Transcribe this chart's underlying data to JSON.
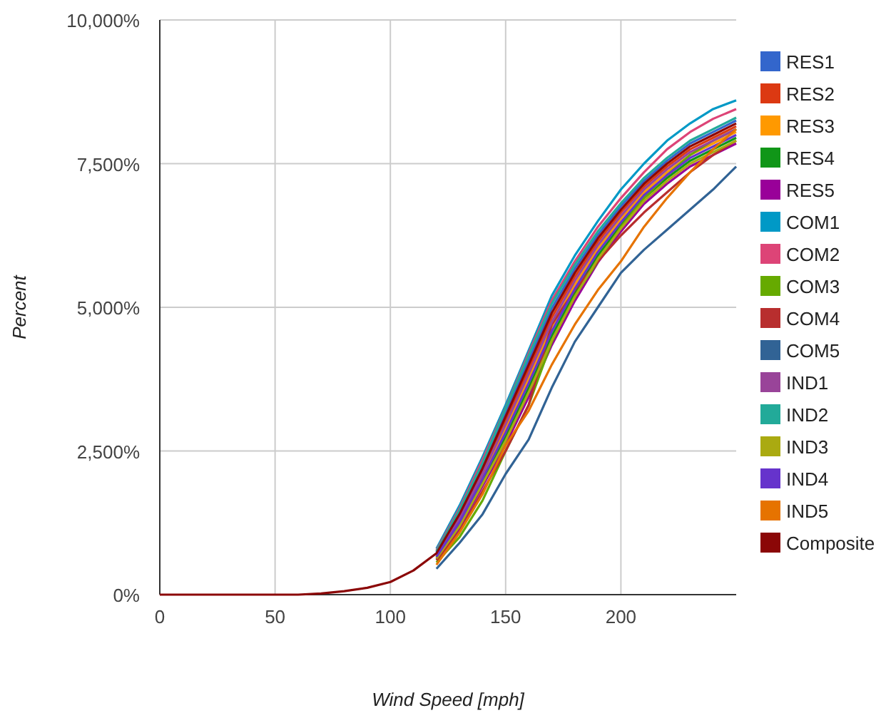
{
  "chart_data": {
    "type": "line",
    "xlabel": "Wind Speed [mph]",
    "ylabel": "Percent",
    "x": [
      0,
      60,
      70,
      80,
      90,
      100,
      110,
      120,
      130,
      140,
      150,
      160,
      170,
      180,
      190,
      200,
      210,
      220,
      230,
      240,
      250
    ],
    "xlim": [
      0,
      250
    ],
    "xticks": [
      0,
      50,
      100,
      150,
      200
    ],
    "ylim": [
      0,
      10000
    ],
    "yticks": [
      {
        "value": 0,
        "label": "0%"
      },
      {
        "value": 2500,
        "label": "2,500%"
      },
      {
        "value": 5000,
        "label": "5,000%"
      },
      {
        "value": 7500,
        "label": "7,500%"
      },
      {
        "value": 10000,
        "label": "10,000%"
      }
    ],
    "grid": true,
    "legend": "right",
    "marker": "none",
    "line_style": "solid",
    "series": [
      {
        "name": "RES1",
        "color": "#3366cc",
        "values": [
          null,
          null,
          null,
          null,
          null,
          null,
          null,
          740,
          1440,
          2250,
          3170,
          4080,
          4980,
          5670,
          6260,
          6760,
          7200,
          7550,
          7850,
          8050,
          8250
        ]
      },
      {
        "name": "RES2",
        "color": "#dc3912",
        "values": [
          null,
          null,
          null,
          null,
          null,
          null,
          null,
          700,
          1360,
          2150,
          3030,
          3920,
          4820,
          5530,
          6140,
          6650,
          7100,
          7450,
          7750,
          7950,
          8150
        ]
      },
      {
        "name": "RES3",
        "color": "#ff9900",
        "values": [
          null,
          null,
          null,
          null,
          null,
          null,
          null,
          680,
          1300,
          2070,
          2890,
          3760,
          4660,
          5390,
          6020,
          6540,
          7000,
          7350,
          7650,
          7850,
          8050
        ]
      },
      {
        "name": "RES4",
        "color": "#109618",
        "values": [
          null,
          null,
          null,
          null,
          null,
          null,
          null,
          650,
          1230,
          1980,
          2750,
          3600,
          4500,
          5250,
          5900,
          6430,
          6900,
          7250,
          7550,
          7750,
          7950
        ]
      },
      {
        "name": "RES5",
        "color": "#990099",
        "values": [
          null,
          null,
          null,
          null,
          null,
          null,
          null,
          620,
          1160,
          1890,
          2610,
          3440,
          4340,
          5110,
          5780,
          6320,
          6800,
          7150,
          7450,
          7650,
          7850
        ]
      },
      {
        "name": "COM1",
        "color": "#0099c6",
        "values": [
          null,
          null,
          null,
          null,
          null,
          null,
          null,
          800,
          1550,
          2400,
          3300,
          4250,
          5200,
          5900,
          6500,
          7050,
          7500,
          7900,
          8200,
          8450,
          8600
        ]
      },
      {
        "name": "COM2",
        "color": "#dd4477",
        "values": [
          null,
          null,
          null,
          null,
          null,
          null,
          null,
          770,
          1500,
          2350,
          3250,
          4200,
          5120,
          5800,
          6400,
          6900,
          7350,
          7750,
          8050,
          8280,
          8450
        ]
      },
      {
        "name": "COM3",
        "color": "#66aa00",
        "values": [
          null,
          null,
          null,
          null,
          null,
          null,
          null,
          560,
          1000,
          1640,
          2500,
          3300,
          4400,
          5200,
          5800,
          6400,
          6900,
          7300,
          7650,
          7900,
          8100
        ]
      },
      {
        "name": "COM4",
        "color": "#b82e2e",
        "values": [
          null,
          null,
          null,
          null,
          null,
          null,
          null,
          600,
          1100,
          1800,
          2500,
          3300,
          4700,
          5300,
          5800,
          6250,
          6650,
          7000,
          7350,
          7650,
          7900
        ]
      },
      {
        "name": "COM5",
        "color": "#316395",
        "values": [
          null,
          null,
          null,
          null,
          null,
          null,
          null,
          450,
          900,
          1400,
          2100,
          2700,
          3600,
          4400,
          5000,
          5600,
          6000,
          6350,
          6700,
          7050,
          7450
        ]
      },
      {
        "name": "IND1",
        "color": "#994499",
        "values": [
          null,
          null,
          null,
          null,
          null,
          null,
          null,
          690,
          1330,
          2110,
          2960,
          3840,
          4740,
          5460,
          6080,
          6590,
          7050,
          7400,
          7700,
          7900,
          8100
        ]
      },
      {
        "name": "IND2",
        "color": "#22aa99",
        "values": [
          null,
          null,
          null,
          null,
          null,
          null,
          null,
          750,
          1470,
          2290,
          3240,
          4160,
          5060,
          5740,
          6320,
          6810,
          7250,
          7600,
          7900,
          8100,
          8300
        ]
      },
      {
        "name": "IND3",
        "color": "#aaaa11",
        "values": [
          null,
          null,
          null,
          null,
          null,
          null,
          null,
          630,
          1190,
          1930,
          2680,
          3520,
          4420,
          5180,
          5840,
          6370,
          6850,
          7200,
          7500,
          7700,
          7900
        ]
      },
      {
        "name": "IND4",
        "color": "#6633cc",
        "values": [
          null,
          null,
          null,
          null,
          null,
          null,
          null,
          660,
          1260,
          2020,
          2820,
          3680,
          4580,
          5320,
          5960,
          6480,
          6950,
          7300,
          7600,
          7800,
          8000
        ]
      },
      {
        "name": "IND5",
        "color": "#e67300",
        "values": [
          null,
          null,
          null,
          null,
          null,
          null,
          null,
          520,
          1080,
          1750,
          2600,
          3200,
          4000,
          4700,
          5300,
          5800,
          6400,
          6900,
          7350,
          7750,
          8100
        ]
      },
      {
        "name": "Composite",
        "color": "#8b0707",
        "values": [
          0,
          0,
          20,
          60,
          120,
          220,
          420,
          720,
          1400,
          2200,
          3100,
          4000,
          4900,
          5600,
          6200,
          6700,
          7150,
          7500,
          7800,
          8000,
          8200
        ]
      }
    ]
  }
}
